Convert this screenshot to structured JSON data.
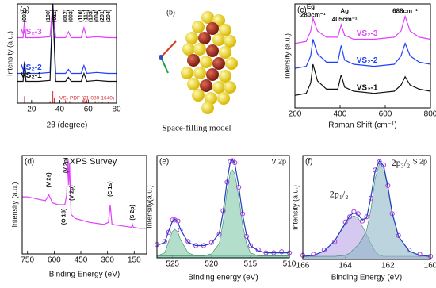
{
  "chart_data": [
    {
      "type": "line",
      "title": "(a)",
      "xlabel": "2θ (degree)",
      "ylabel": "Intensity (a.u.)",
      "xlim": [
        10,
        80
      ],
      "xticks": [
        20,
        40,
        60,
        80
      ],
      "ylim": [
        0,
        100
      ],
      "x": [
        10,
        14,
        15,
        16,
        25,
        33,
        35,
        37,
        44,
        46,
        48,
        55,
        57,
        59,
        66,
        74,
        80
      ],
      "series": [
        {
          "name": "VS₂-3",
          "color": "#e040fb",
          "values": [
            66,
            66,
            84,
            66,
            66,
            67,
            100,
            66,
            66,
            72,
            66,
            66,
            76,
            66,
            67,
            66,
            66
          ]
        },
        {
          "name": "VS₂-2",
          "color": "#1f3fff",
          "values": [
            30,
            30,
            42,
            30,
            30,
            31,
            100,
            30,
            30,
            34,
            30,
            30,
            38,
            30,
            31,
            30,
            30
          ]
        },
        {
          "name": "VS₂-1",
          "color": "#111111",
          "values": [
            22,
            22,
            40,
            22,
            22,
            23,
            100,
            22,
            22,
            26,
            22,
            22,
            30,
            22,
            23,
            22,
            22
          ]
        }
      ],
      "reference": {
        "name": "VS₂ PDF (01-089-1640)",
        "color": "#d62728",
        "x": [
          15,
          33,
          35,
          36,
          44,
          45,
          47,
          56,
          57,
          58,
          59,
          65,
          67,
          70,
          74
        ],
        "values": [
          7,
          2,
          12,
          5,
          3,
          4,
          2,
          3,
          5,
          2,
          3,
          2,
          2,
          1,
          1
        ]
      },
      "annotations": [
        {
          "text": "(001)",
          "x": 15,
          "y": 88
        },
        {
          "text": "(100)",
          "x": 32,
          "y": 88
        },
        {
          "text": "(011)",
          "x": 36.5,
          "y": 88
        },
        {
          "text": "(012)",
          "x": 44,
          "y": 88
        },
        {
          "text": "(003)",
          "x": 48,
          "y": 88
        },
        {
          "text": "(110)",
          "x": 55,
          "y": 88
        },
        {
          "text": "(111)",
          "x": 58.5,
          "y": 88
        },
        {
          "text": "(103)",
          "x": 62,
          "y": 88
        },
        {
          "text": "(004)",
          "x": 66,
          "y": 88
        },
        {
          "text": "(201)",
          "x": 70,
          "y": 88
        },
        {
          "text": "(204)",
          "x": 74.5,
          "y": 88
        }
      ]
    },
    {
      "type": "model",
      "title": "(b)",
      "caption": "Space-filling model"
    },
    {
      "type": "line",
      "title": "(c)",
      "xlabel": "Raman Shift (cm⁻¹)",
      "ylabel": "Intensity (a.u.)",
      "xlim": [
        200,
        800
      ],
      "xticks": [
        200,
        400,
        600,
        800
      ],
      "ylim": [
        0,
        100
      ],
      "x": [
        200,
        250,
        270,
        280,
        300,
        340,
        390,
        405,
        420,
        460,
        550,
        640,
        670,
        688,
        710,
        750,
        800
      ],
      "series": [
        {
          "name": "VS₂-3",
          "color": "#e040fb",
          "values": [
            62,
            64,
            74,
            86,
            74,
            68,
            68,
            80,
            70,
            66,
            66,
            68,
            74,
            88,
            74,
            68,
            66
          ]
        },
        {
          "name": "VS₂-2",
          "color": "#1f3fff",
          "values": [
            38,
            40,
            50,
            66,
            52,
            44,
            44,
            60,
            46,
            42,
            40,
            42,
            50,
            62,
            50,
            44,
            42
          ]
        },
        {
          "name": "VS₂-1",
          "color": "#111111",
          "values": [
            12,
            14,
            24,
            42,
            26,
            18,
            18,
            32,
            20,
            16,
            14,
            16,
            22,
            30,
            22,
            18,
            16
          ]
        }
      ],
      "annotations": [
        {
          "text": "Eg",
          "x": 270,
          "y": 97
        },
        {
          "text": "280cm⁻¹",
          "x": 280,
          "y": 89
        },
        {
          "text": "Ag",
          "x": 420,
          "y": 93
        },
        {
          "text": "405cm⁻¹",
          "x": 420,
          "y": 85
        },
        {
          "text": "688cm⁻¹",
          "x": 688,
          "y": 93
        }
      ]
    },
    {
      "type": "line",
      "title": "(d)",
      "subtitle": "XPS Survey",
      "xlabel": "Binding Energy (eV)",
      "ylabel": "Intensity (a.u.)",
      "xlim": [
        780,
        80
      ],
      "xticks": [
        750,
        600,
        450,
        300,
        150
      ],
      "ylim": [
        0,
        100
      ],
      "x": [
        780,
        750,
        700,
        650,
        630,
        610,
        580,
        540,
        530,
        522,
        518,
        514,
        505,
        480,
        400,
        320,
        295,
        285,
        275,
        200,
        165,
        160,
        155,
        120,
        80
      ],
      "series": [
        {
          "color": "#e040fb",
          "values": [
            58,
            58,
            56,
            54,
            60,
            52,
            50,
            50,
            60,
            96,
            70,
            92,
            40,
            36,
            32,
            30,
            32,
            50,
            30,
            28,
            27,
            30,
            27,
            26,
            26
          ]
        }
      ],
      "annotations": [
        {
          "text": "(V 2s)",
          "x": 630,
          "y": 75
        },
        {
          "text": "(V 2p)",
          "x": 535,
          "y": 90
        },
        {
          "text": "(V 2p)",
          "x": 500,
          "y": 62
        },
        {
          "text": "(O 1S)",
          "x": 545,
          "y": 38
        },
        {
          "text": "(C 1s)",
          "x": 285,
          "y": 66
        },
        {
          "text": "(S 2p)",
          "x": 160,
          "y": 42
        }
      ]
    },
    {
      "type": "line",
      "title": "(e)",
      "subtitle": "V 2p",
      "xlabel": "Binding energy (eV)",
      "ylabel": "Intensity(a.u.)",
      "xlim": [
        527,
        510
      ],
      "xticks": [
        525,
        520,
        515,
        510
      ],
      "ylim": [
        0,
        100
      ],
      "x": [
        527,
        526,
        525.5,
        525,
        524.7,
        524.3,
        524,
        523,
        522,
        521,
        520,
        519,
        518.5,
        518,
        517.6,
        517.3,
        517,
        516.5,
        516,
        515.5,
        515,
        514,
        513,
        512,
        511,
        510
      ],
      "series": [
        {
          "color": "#7fc8a9",
          "fill": true,
          "values": [
            2,
            5,
            16,
            26,
            28,
            25,
            18,
            5,
            2,
            2,
            2,
            2,
            2,
            2,
            2,
            2,
            2,
            2,
            2,
            2,
            2,
            2,
            2,
            2,
            2,
            2
          ]
        },
        {
          "color": "#7fc8a9",
          "fill": true,
          "values": [
            2,
            2,
            2,
            2,
            2,
            2,
            2,
            2,
            2,
            2,
            4,
            14,
            35,
            65,
            83,
            86,
            82,
            60,
            32,
            14,
            5,
            2,
            2,
            2,
            2,
            2
          ]
        },
        {
          "color": "#b040e0",
          "marker": true,
          "values": [
            13,
            16,
            25,
            37,
            37,
            36,
            27,
            16,
            12,
            12,
            15,
            23,
            46,
            74,
            94,
            95,
            93,
            69,
            43,
            21,
            12,
            8,
            5,
            5,
            6,
            5
          ]
        },
        {
          "color": "#1f3fbf",
          "values": [
            12,
            15,
            26,
            36,
            38,
            35,
            28,
            15,
            12,
            12,
            14,
            24,
            45,
            75,
            93,
            96,
            92,
            70,
            42,
            22,
            12,
            7,
            5,
            5,
            5,
            5
          ]
        }
      ]
    },
    {
      "type": "line",
      "title": "(f)",
      "subtitle": "S 2p",
      "xlabel": "Binding Energy (eV)",
      "ylabel": "Intensity (a.u.)",
      "xlim": [
        166,
        160
      ],
      "xticks": [
        166,
        164,
        162,
        160
      ],
      "ylim": [
        0,
        100
      ],
      "x": [
        166,
        165.5,
        165,
        164.5,
        164,
        163.8,
        163.6,
        163.4,
        163.2,
        163,
        162.8,
        162.6,
        162.4,
        162.2,
        162,
        161.8,
        161.5,
        161,
        160.5,
        160
      ],
      "series": [
        {
          "color": "#b9a3e8",
          "fill": true,
          "values": [
            3,
            4,
            8,
            18,
            34,
            40,
            42,
            40,
            32,
            24,
            15,
            8,
            4,
            3,
            3,
            3,
            3,
            3,
            3,
            3
          ]
        },
        {
          "color": "#8fb8c8",
          "fill": true,
          "values": [
            3,
            3,
            3,
            3,
            4,
            6,
            10,
            14,
            20,
            28,
            48,
            78,
            92,
            88,
            68,
            44,
            22,
            8,
            4,
            3
          ]
        },
        {
          "color": "#b040e0",
          "marker": true,
          "values": [
            4,
            5,
            9,
            17,
            36,
            41,
            46,
            44,
            37,
            41,
            59,
            86,
            94,
            91,
            71,
            44,
            23,
            9,
            5,
            3
          ]
        },
        {
          "color": "#1f3fbf",
          "values": [
            3,
            4,
            8,
            18,
            35,
            42,
            45,
            43,
            38,
            40,
            60,
            85,
            95,
            90,
            70,
            45,
            22,
            8,
            4,
            3
          ]
        }
      ],
      "annotations": [
        {
          "text": "2p₁/₂",
          "x": 164.3,
          "y": 62
        },
        {
          "text": "2p₃/₂",
          "x": 161.4,
          "y": 92
        }
      ]
    }
  ]
}
